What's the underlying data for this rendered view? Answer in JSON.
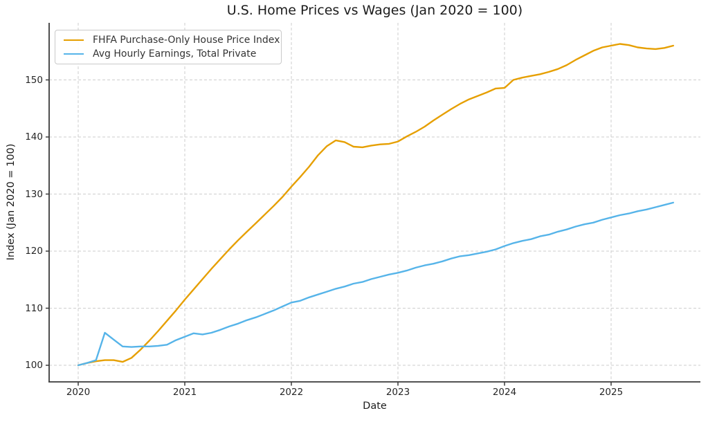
{
  "figure": {
    "title": "U.S. Home Prices vs Wages (Jan 2020 = 100)",
    "xlabel": "Date",
    "ylabel": "Index (Jan 2020 = 100)"
  },
  "legend": {
    "position": "upper left",
    "items": [
      {
        "label": "FHFA Purchase-Only House Price Index",
        "color": "#E69F00"
      },
      {
        "label": "Avg Hourly Earnings, Total Private",
        "color": "#56B4E9"
      }
    ]
  },
  "colors": {
    "background": "#ffffff",
    "axis": "#3a3a3a",
    "grid": "#cdcdcd",
    "text": "#262626",
    "series_home_prices": "#E69F00",
    "series_wages": "#56B4E9"
  },
  "chart_data": {
    "type": "line",
    "title": "U.S. Home Prices vs Wages (Jan 2020 = 100)",
    "xlabel": "Date",
    "ylabel": "Index (Jan 2020 = 100)",
    "x_start": "2020-01",
    "x_end": "2025-08",
    "x_freq": "monthly",
    "x_ticks": [
      2020,
      2021,
      2022,
      2023,
      2024,
      2025
    ],
    "y_ticks": [
      100,
      110,
      120,
      130,
      140,
      150
    ],
    "xlim": [
      2019.73,
      2025.83
    ],
    "ylim": [
      97.2,
      160.0
    ],
    "grid": true,
    "grid_style": "dashed",
    "legend_position": "upper left",
    "series": [
      {
        "name": "FHFA Purchase-Only House Price Index",
        "color": "#E69F00",
        "values": [
          100.0,
          100.4,
          100.7,
          100.9,
          100.9,
          100.6,
          101.3,
          102.7,
          104.3,
          106.0,
          107.8,
          109.6,
          111.5,
          113.3,
          115.1,
          116.9,
          118.6,
          120.3,
          121.9,
          123.4,
          124.9,
          126.4,
          127.9,
          129.5,
          131.3,
          133.0,
          134.8,
          136.8,
          138.4,
          139.4,
          139.1,
          138.3,
          138.2,
          138.5,
          138.7,
          138.8,
          139.2,
          140.1,
          140.9,
          141.8,
          142.9,
          143.9,
          144.9,
          145.8,
          146.6,
          147.2,
          147.8,
          148.5,
          148.6,
          150.0,
          150.4,
          150.7,
          151.0,
          151.4,
          151.9,
          152.6,
          153.5,
          154.3,
          155.1,
          155.7,
          156.0,
          156.3,
          156.1,
          155.7,
          155.5,
          155.4,
          155.6,
          156.0
        ]
      },
      {
        "name": "Avg Hourly Earnings, Total Private",
        "color": "#56B4E9",
        "values": [
          100.0,
          100.4,
          100.9,
          105.7,
          104.5,
          103.3,
          103.2,
          103.3,
          103.3,
          103.4,
          103.6,
          104.4,
          105.0,
          105.6,
          105.4,
          105.7,
          106.2,
          106.8,
          107.3,
          107.9,
          108.4,
          109.0,
          109.6,
          110.3,
          111.0,
          111.3,
          111.9,
          112.4,
          112.9,
          113.4,
          113.8,
          114.3,
          114.6,
          115.1,
          115.5,
          115.9,
          116.2,
          116.6,
          117.1,
          117.5,
          117.8,
          118.2,
          118.7,
          119.1,
          119.3,
          119.6,
          119.9,
          120.3,
          120.9,
          121.4,
          121.8,
          122.1,
          122.6,
          122.9,
          123.4,
          123.8,
          124.3,
          124.7,
          125.0,
          125.5,
          125.9,
          126.3,
          126.6,
          127.0,
          127.3,
          127.7,
          128.1,
          128.5
        ]
      }
    ]
  }
}
